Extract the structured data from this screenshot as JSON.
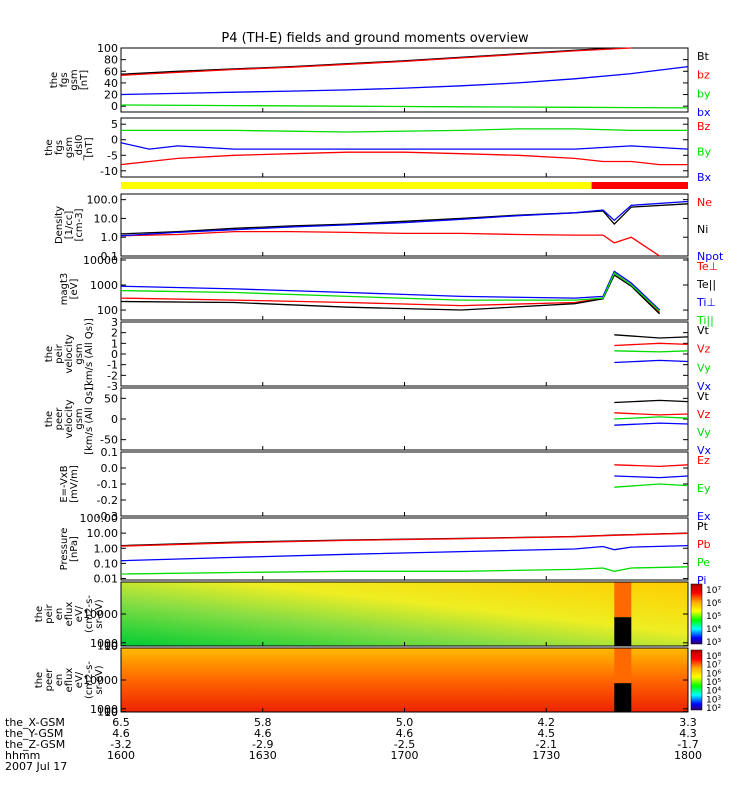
{
  "title": "P4 (TH-E) fields and ground moments overview",
  "colors": {
    "black": "#000000",
    "red": "#ff0000",
    "green": "#00dd00",
    "blue": "#0000ff",
    "yellow": "#ffff00"
  },
  "chart_data": [
    {
      "type": "line",
      "ylabel": [
        "the",
        "fgs",
        "gsm",
        "[nT]"
      ],
      "ylim": [
        -10,
        100
      ],
      "ticks": [
        100,
        80,
        60,
        40,
        20,
        0
      ],
      "tick_labels": [
        "100",
        "80",
        "60",
        "40",
        "20",
        "0"
      ],
      "series": [
        {
          "name": "Bt",
          "color": "black",
          "x": [
            0,
            0.1,
            0.2,
            0.3,
            0.4,
            0.5,
            0.6,
            0.7,
            0.8,
            0.87
          ],
          "y": [
            55,
            60,
            64,
            68,
            73,
            78,
            84,
            90,
            96,
            100
          ]
        },
        {
          "name": "bz",
          "color": "red",
          "x": [
            0,
            0.1,
            0.2,
            0.3,
            0.4,
            0.5,
            0.6,
            0.7,
            0.8,
            0.9
          ],
          "y": [
            53,
            58,
            63,
            67,
            72,
            77,
            83,
            89,
            95,
            100
          ]
        },
        {
          "name": "by",
          "color": "green",
          "x": [
            0,
            0.2,
            0.4,
            0.6,
            0.8,
            1
          ],
          "y": [
            2,
            1,
            0,
            -1,
            -2,
            -3
          ]
        },
        {
          "name": "bx",
          "color": "blue",
          "x": [
            0,
            0.1,
            0.2,
            0.3,
            0.4,
            0.5,
            0.6,
            0.7,
            0.8,
            0.9,
            1
          ],
          "y": [
            20,
            22,
            24,
            26,
            28,
            31,
            35,
            40,
            47,
            56,
            68
          ]
        }
      ]
    },
    {
      "type": "line",
      "ylabel": [
        "the",
        "fgs",
        "gsm",
        "_dsl0",
        "[nT]"
      ],
      "ylim": [
        -12,
        7
      ],
      "ticks": [
        5,
        0,
        -5,
        -10
      ],
      "tick_labels": [
        "5",
        "0",
        "-5",
        "-10"
      ],
      "series": [
        {
          "name": "Bz",
          "color": "red",
          "x": [
            0,
            0.05,
            0.1,
            0.2,
            0.3,
            0.4,
            0.5,
            0.6,
            0.7,
            0.8,
            0.85,
            0.9,
            0.95,
            1
          ],
          "y": [
            -8,
            -7,
            -6,
            -5,
            -4.5,
            -4,
            -4,
            -4.5,
            -5,
            -6,
            -7,
            -7,
            -8,
            -8
          ]
        },
        {
          "name": "By",
          "color": "green",
          "x": [
            0,
            0.2,
            0.4,
            0.6,
            0.7,
            0.8,
            0.9,
            1
          ],
          "y": [
            3,
            3,
            2.5,
            3,
            3.5,
            3.5,
            3,
            3
          ]
        },
        {
          "name": "Bx",
          "color": "blue",
          "x": [
            0,
            0.05,
            0.1,
            0.2,
            0.4,
            0.6,
            0.8,
            0.9,
            1
          ],
          "y": [
            -1,
            -3,
            -2,
            -3,
            -3,
            -3,
            -3,
            -2,
            -3
          ]
        }
      ]
    },
    {
      "type": "line",
      "scale": "log",
      "ylabel": [
        "Density",
        "[1/cc]",
        "[cm-3]"
      ],
      "ylim": [
        0.1,
        200
      ],
      "ticks": [
        100,
        10,
        1,
        0.1
      ],
      "tick_labels": [
        "100.0",
        "10.0",
        "1.0",
        "0.1"
      ],
      "series": [
        {
          "name": "Ne",
          "color": "red",
          "x": [
            0,
            0.1,
            0.2,
            0.3,
            0.4,
            0.5,
            0.6,
            0.7,
            0.8,
            0.85,
            0.87,
            0.9,
            0.95
          ],
          "y": [
            1.2,
            1.4,
            2,
            2,
            1.8,
            1.6,
            1.6,
            1.4,
            1.3,
            1.3,
            0.5,
            1.0,
            0.1
          ]
        },
        {
          "name": "Ni",
          "color": "black",
          "x": [
            0,
            0.1,
            0.2,
            0.3,
            0.4,
            0.5,
            0.6,
            0.7,
            0.8,
            0.85,
            0.87,
            0.9,
            1
          ],
          "y": [
            1.5,
            2,
            3,
            4,
            5,
            7,
            10,
            15,
            20,
            25,
            5,
            40,
            60
          ]
        },
        {
          "name": "Npot",
          "color": "blue",
          "x": [
            0,
            0.1,
            0.2,
            0.3,
            0.4,
            0.5,
            0.6,
            0.7,
            0.8,
            0.85,
            0.87,
            0.9,
            1
          ],
          "y": [
            1.2,
            1.8,
            2.5,
            3.5,
            4.5,
            6,
            9,
            14,
            20,
            28,
            8,
            50,
            80
          ]
        }
      ]
    },
    {
      "type": "line",
      "scale": "log",
      "ylabel": [
        "magt3",
        "[eV]"
      ],
      "ylim": [
        40,
        12000
      ],
      "ticks": [
        10000,
        1000,
        100
      ],
      "tick_labels": [
        "10000",
        "1000",
        "100"
      ],
      "series": [
        {
          "name": "Te⊥",
          "color": "red",
          "x": [
            0,
            0.2,
            0.4,
            0.6,
            0.8,
            0.85,
            0.87,
            0.9,
            0.95
          ],
          "y": [
            300,
            250,
            200,
            150,
            200,
            300,
            3000,
            1000,
            80
          ]
        },
        {
          "name": "Te||",
          "color": "black",
          "x": [
            0,
            0.2,
            0.4,
            0.6,
            0.8,
            0.85,
            0.87,
            0.9,
            0.95
          ],
          "y": [
            220,
            200,
            130,
            100,
            180,
            280,
            2500,
            900,
            70
          ]
        },
        {
          "name": "Ti⊥",
          "color": "blue",
          "x": [
            0,
            0.2,
            0.4,
            0.6,
            0.8,
            0.85,
            0.87,
            0.9,
            0.95
          ],
          "y": [
            900,
            700,
            500,
            350,
            300,
            350,
            3500,
            1200,
            100
          ]
        },
        {
          "name": "Ti||",
          "color": "green",
          "x": [
            0,
            0.2,
            0.4,
            0.6,
            0.8,
            0.85,
            0.87,
            0.9,
            0.95
          ],
          "y": [
            600,
            500,
            350,
            250,
            250,
            300,
            3000,
            1000,
            90
          ]
        }
      ]
    },
    {
      "type": "line",
      "ylabel": [
        "the",
        "peir",
        "velocity",
        "gsm",
        "[km/s (All Qs)]"
      ],
      "ylim": [
        -3,
        3
      ],
      "ticks": [
        3,
        2,
        1,
        0,
        -1,
        -2,
        -3
      ],
      "tick_labels": [
        "3",
        "2",
        "1",
        "0",
        "-1",
        "-2",
        "-3"
      ],
      "series": [
        {
          "name": "Vt",
          "color": "black",
          "x": [
            0.87,
            0.95,
            1
          ],
          "y": [
            1.8,
            1.5,
            1.6
          ]
        },
        {
          "name": "Vz",
          "color": "red",
          "x": [
            0.87,
            0.95,
            1
          ],
          "y": [
            0.8,
            1,
            0.9
          ]
        },
        {
          "name": "Vy",
          "color": "green",
          "x": [
            0.87,
            0.95,
            1
          ],
          "y": [
            0.3,
            0.2,
            0.3
          ]
        },
        {
          "name": "Vx",
          "color": "blue",
          "x": [
            0.87,
            0.95,
            1
          ],
          "y": [
            -0.8,
            -0.6,
            -0.7
          ]
        }
      ]
    },
    {
      "type": "line",
      "ylabel": [
        "the",
        "peer",
        "velocity",
        "gsm",
        "[km/s (All Qs)]"
      ],
      "ylim": [
        -75,
        75
      ],
      "ticks": [
        50,
        0,
        -50
      ],
      "tick_labels": [
        "50",
        "0",
        "-50"
      ],
      "series": [
        {
          "name": "Vt",
          "color": "black",
          "x": [
            0.87,
            0.95,
            1
          ],
          "y": [
            40,
            45,
            42
          ]
        },
        {
          "name": "Vz",
          "color": "red",
          "x": [
            0.87,
            0.95,
            1
          ],
          "y": [
            15,
            10,
            12
          ]
        },
        {
          "name": "Vy",
          "color": "green",
          "x": [
            0.87,
            0.95,
            1
          ],
          "y": [
            0,
            5,
            2
          ]
        },
        {
          "name": "Vx",
          "color": "blue",
          "x": [
            0.87,
            0.95,
            1
          ],
          "y": [
            -15,
            -10,
            -12
          ]
        }
      ]
    },
    {
      "type": "line",
      "ylabel": [
        "E=-VxB",
        "[mV/m]"
      ],
      "ylim": [
        -0.3,
        0.1
      ],
      "ticks": [
        0.1,
        0.0,
        -0.1,
        -0.2,
        -0.3
      ],
      "tick_labels": [
        "0.1",
        "0.0",
        "-0.1",
        "-0.2",
        "-0.3"
      ],
      "series": [
        {
          "name": "Ez",
          "color": "red",
          "x": [
            0.87,
            0.95,
            1
          ],
          "y": [
            0.02,
            0.01,
            0.02
          ]
        },
        {
          "name": "Ey",
          "color": "green",
          "x": [
            0.87,
            0.95,
            1
          ],
          "y": [
            -0.12,
            -0.1,
            -0.11
          ]
        },
        {
          "name": "Ex",
          "color": "blue",
          "x": [
            0.87,
            0.95,
            1
          ],
          "y": [
            -0.05,
            -0.06,
            -0.05
          ]
        }
      ]
    },
    {
      "type": "line",
      "scale": "log",
      "ylabel": [
        "Pressure",
        "[nPa]"
      ],
      "ylim": [
        0.008,
        100
      ],
      "ticks": [
        100,
        10,
        1,
        0.1,
        0.01
      ],
      "tick_labels": [
        "100.00",
        "10.00",
        "1.00",
        "0.10",
        "0.01"
      ],
      "series": [
        {
          "name": "Pt",
          "color": "black",
          "x": [
            0,
            0.2,
            0.4,
            0.6,
            0.8,
            0.85,
            0.87,
            0.9,
            1
          ],
          "y": [
            1.5,
            2.5,
            3.5,
            4.5,
            6,
            7,
            7.5,
            8,
            10
          ]
        },
        {
          "name": "Pb",
          "color": "red",
          "x": [
            0,
            0.2,
            0.4,
            0.6,
            0.8,
            0.85,
            0.87,
            0.9,
            1
          ],
          "y": [
            1.4,
            2.3,
            3.3,
            4.3,
            5.8,
            6.8,
            7.2,
            7.8,
            9.8
          ]
        },
        {
          "name": "Pe",
          "color": "green",
          "x": [
            0,
            0.2,
            0.4,
            0.6,
            0.8,
            0.85,
            0.87,
            0.9,
            1
          ],
          "y": [
            0.02,
            0.025,
            0.03,
            0.03,
            0.04,
            0.05,
            0.03,
            0.05,
            0.06
          ]
        },
        {
          "name": "Pi",
          "color": "blue",
          "x": [
            0,
            0.2,
            0.4,
            0.6,
            0.8,
            0.85,
            0.87,
            0.9,
            1
          ],
          "y": [
            0.15,
            0.25,
            0.4,
            0.6,
            0.9,
            1.3,
            0.8,
            1.2,
            1.5
          ]
        }
      ]
    },
    {
      "type": "heatmap",
      "ylabel": [
        "the",
        "peir",
        "en",
        "eflux",
        "eV/",
        "(cm2-s-",
        "sr-eV)"
      ],
      "ylim": [
        5,
        20000
      ],
      "ticks": [
        10000,
        1000,
        100,
        10
      ],
      "tick_labels": [
        "10000",
        "1000",
        "100",
        "10"
      ],
      "colorbar_labels": [
        "10⁷",
        "10⁶",
        "10⁵",
        "10⁴",
        "10³"
      ],
      "gap": [
        0.87,
        0.9
      ]
    },
    {
      "type": "heatmap",
      "ylabel": [
        "the",
        "peer",
        "en",
        "eflux",
        "eV/",
        "(cm2-s-",
        "sr-eV)"
      ],
      "ylim": [
        5,
        20000
      ],
      "ticks": [
        10000,
        1000,
        100,
        10
      ],
      "tick_labels": [
        "10000",
        "1000",
        "100",
        "10"
      ],
      "colorbar_labels": [
        "10⁸",
        "10⁷",
        "10⁶",
        "10⁵",
        "10⁴",
        "10³",
        "10²"
      ],
      "gap": [
        0.87,
        0.9
      ]
    }
  ],
  "legends": [
    [
      "Bt",
      "bz",
      "by",
      "bx"
    ],
    [
      "Bz",
      "By",
      "Bx"
    ],
    [
      "Ne",
      "Ni",
      "Npot"
    ],
    [
      "Te⊥",
      "Te||",
      "Ti⊥",
      "Ti||"
    ],
    [
      "Vt",
      "Vz",
      "Vy",
      "Vx"
    ],
    [
      "Vt",
      "Vz",
      "Vy",
      "Vx"
    ],
    [
      "Ez",
      "Ey",
      "Ex"
    ],
    [
      "Pt",
      "Pb",
      "Pe",
      "Pi"
    ]
  ],
  "legend_colors": [
    [
      "black",
      "red",
      "green",
      "blue"
    ],
    [
      "red",
      "green",
      "blue"
    ],
    [
      "red",
      "black",
      "blue"
    ],
    [
      "red",
      "black",
      "blue",
      "green"
    ],
    [
      "black",
      "red",
      "green",
      "blue"
    ],
    [
      "black",
      "red",
      "green",
      "blue"
    ],
    [
      "red",
      "green",
      "blue"
    ],
    [
      "black",
      "red",
      "green",
      "blue"
    ]
  ],
  "x_axis": {
    "ticks": [
      "1600",
      "1630",
      "1700",
      "1730",
      "1800"
    ],
    "rows": [
      {
        "label": "the_X-GSM",
        "values": [
          "6.5",
          "5.8",
          "5.0",
          "4.2",
          "3.3"
        ]
      },
      {
        "label": "the_Y-GSM",
        "values": [
          "4.6",
          "4.6",
          "4.6",
          "4.5",
          "4.3"
        ]
      },
      {
        "label": "the_Z-GSM",
        "values": [
          "-3.2",
          "-2.9",
          "-2.5",
          "-2.1",
          "-1.7"
        ]
      },
      {
        "label": "hhmm",
        "values": [
          "1600",
          "1630",
          "1700",
          "1730",
          "1800"
        ]
      }
    ],
    "date": "2007 Jul 17"
  }
}
